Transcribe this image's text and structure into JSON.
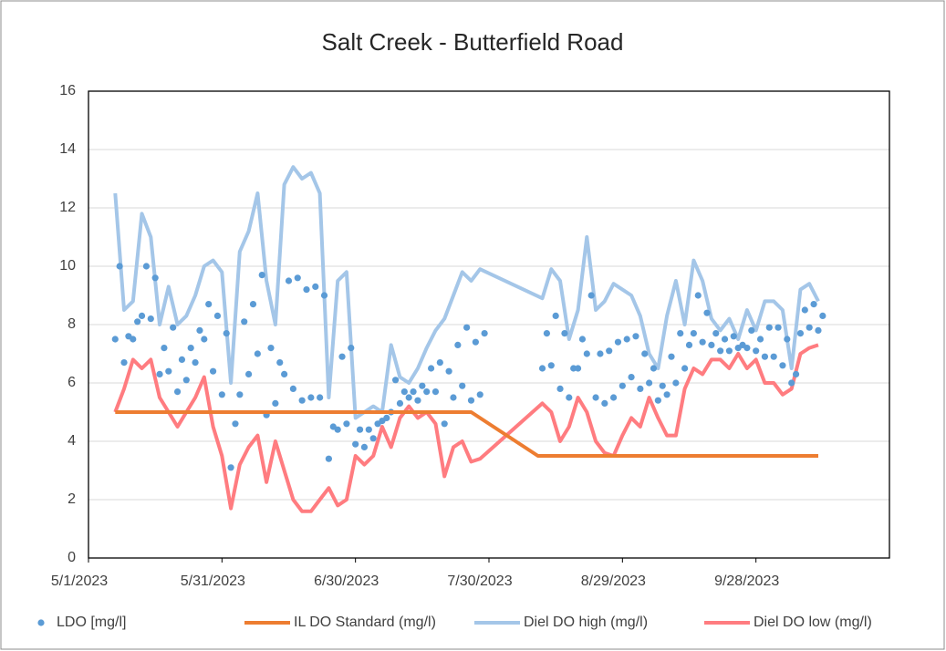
{
  "chart_data": {
    "type": "line",
    "title": "Salt Creek - Butterfield Road",
    "xlim": [
      "5/1/2023",
      "10/28/2023"
    ],
    "xticks": [
      "5/1/2023",
      "5/31/2023",
      "6/30/2023",
      "7/30/2023",
      "8/29/2023",
      "9/28/2023"
    ],
    "ylim": [
      0,
      16
    ],
    "yticks": [
      0,
      2,
      4,
      6,
      8,
      10,
      12,
      14,
      16
    ],
    "grid": true,
    "legend": "bottom",
    "x": [
      "5/7/2023",
      "5/9/2023",
      "5/11/2023",
      "5/13/2023",
      "5/15/2023",
      "5/17/2023",
      "5/19/2023",
      "5/21/2023",
      "5/23/2023",
      "5/25/2023",
      "5/27/2023",
      "5/29/2023",
      "5/31/2023",
      "6/2/2023",
      "6/4/2023",
      "6/6/2023",
      "6/8/2023",
      "6/10/2023",
      "6/12/2023",
      "6/14/2023",
      "6/16/2023",
      "6/18/2023",
      "6/20/2023",
      "6/22/2023",
      "6/24/2023",
      "6/26/2023",
      "6/28/2023",
      "6/30/2023",
      "7/2/2023",
      "7/4/2023",
      "7/6/2023",
      "7/8/2023",
      "7/10/2023",
      "7/12/2023",
      "7/14/2023",
      "7/16/2023",
      "7/18/2023",
      "7/20/2023",
      "7/22/2023",
      "7/24/2023",
      "7/26/2023",
      "7/28/2023",
      "8/11/2023",
      "8/13/2023",
      "8/15/2023",
      "8/17/2023",
      "8/19/2023",
      "8/21/2023",
      "8/23/2023",
      "8/25/2023",
      "8/27/2023",
      "8/29/2023",
      "8/31/2023",
      "9/2/2023",
      "9/4/2023",
      "9/6/2023",
      "9/8/2023",
      "9/10/2023",
      "9/12/2023",
      "9/14/2023",
      "9/16/2023",
      "9/18/2023",
      "9/20/2023",
      "9/22/2023",
      "9/24/2023",
      "9/26/2023",
      "9/28/2023",
      "9/30/2023",
      "10/2/2023",
      "10/4/2023",
      "10/6/2023",
      "10/8/2023",
      "10/10/2023",
      "10/12/2023"
    ],
    "series": [
      {
        "name": "LDO [mg/l]",
        "type": "scatter",
        "color": "#5b9bd5",
        "x": [
          "5/7/2023",
          "5/8/2023",
          "5/9/2023",
          "5/10/2023",
          "5/11/2023",
          "5/12/2023",
          "5/13/2023",
          "5/14/2023",
          "5/15/2023",
          "5/16/2023",
          "5/17/2023",
          "5/18/2023",
          "5/19/2023",
          "5/20/2023",
          "5/21/2023",
          "5/22/2023",
          "5/23/2023",
          "5/24/2023",
          "5/25/2023",
          "5/26/2023",
          "5/27/2023",
          "5/28/2023",
          "5/29/2023",
          "5/30/2023",
          "5/31/2023",
          "6/1/2023",
          "6/2/2023",
          "6/3/2023",
          "6/4/2023",
          "6/5/2023",
          "6/6/2023",
          "6/7/2023",
          "6/8/2023",
          "6/9/2023",
          "6/10/2023",
          "6/11/2023",
          "6/12/2023",
          "6/13/2023",
          "6/14/2023",
          "6/15/2023",
          "6/16/2023",
          "6/17/2023",
          "6/18/2023",
          "6/19/2023",
          "6/20/2023",
          "6/21/2023",
          "6/22/2023",
          "6/23/2023",
          "6/24/2023",
          "6/25/2023",
          "6/26/2023",
          "6/27/2023",
          "6/28/2023",
          "6/29/2023",
          "6/30/2023",
          "7/1/2023",
          "7/2/2023",
          "7/3/2023",
          "7/4/2023",
          "7/5/2023",
          "7/6/2023",
          "7/7/2023",
          "7/8/2023",
          "7/9/2023",
          "7/10/2023",
          "7/11/2023",
          "7/12/2023",
          "7/13/2023",
          "7/14/2023",
          "7/15/2023",
          "7/16/2023",
          "7/17/2023",
          "7/18/2023",
          "7/19/2023",
          "7/20/2023",
          "7/21/2023",
          "7/22/2023",
          "7/23/2023",
          "7/24/2023",
          "7/25/2023",
          "7/26/2023",
          "7/27/2023",
          "7/28/2023",
          "7/29/2023",
          "8/11/2023",
          "8/12/2023",
          "8/13/2023",
          "8/14/2023",
          "8/15/2023",
          "8/16/2023",
          "8/17/2023",
          "8/18/2023",
          "8/19/2023",
          "8/20/2023",
          "8/21/2023",
          "8/22/2023",
          "8/23/2023",
          "8/24/2023",
          "8/25/2023",
          "8/26/2023",
          "8/27/2023",
          "8/28/2023",
          "8/29/2023",
          "8/30/2023",
          "8/31/2023",
          "9/1/2023",
          "9/2/2023",
          "9/3/2023",
          "9/4/2023",
          "9/5/2023",
          "9/6/2023",
          "9/7/2023",
          "9/8/2023",
          "9/9/2023",
          "9/10/2023",
          "9/11/2023",
          "9/12/2023",
          "9/13/2023",
          "9/14/2023",
          "9/15/2023",
          "9/16/2023",
          "9/17/2023",
          "9/18/2023",
          "9/19/2023",
          "9/20/2023",
          "9/21/2023",
          "9/22/2023",
          "9/23/2023",
          "9/24/2023",
          "9/25/2023",
          "9/26/2023",
          "9/27/2023",
          "9/28/2023",
          "9/29/2023",
          "9/30/2023",
          "10/1/2023",
          "10/2/2023",
          "10/3/2023",
          "10/4/2023",
          "10/5/2023",
          "10/6/2023",
          "10/7/2023",
          "10/8/2023",
          "10/9/2023",
          "10/10/2023",
          "10/11/2023",
          "10/12/2023",
          "10/13/2023"
        ],
        "values": [
          7.5,
          10.0,
          6.7,
          7.6,
          7.5,
          8.1,
          8.3,
          10.0,
          8.2,
          9.6,
          6.3,
          7.2,
          6.4,
          7.9,
          5.7,
          6.8,
          6.1,
          7.2,
          6.7,
          7.8,
          7.5,
          8.7,
          6.4,
          8.3,
          5.6,
          7.7,
          3.1,
          4.6,
          5.6,
          8.1,
          6.3,
          8.7,
          7.0,
          9.7,
          4.9,
          7.2,
          5.3,
          6.7,
          6.3,
          9.5,
          5.8,
          9.6,
          5.4,
          9.2,
          5.5,
          9.3,
          5.5,
          9.0,
          3.4,
          4.5,
          4.4,
          6.9,
          4.6,
          7.2,
          3.9,
          4.4,
          3.8,
          4.4,
          4.1,
          4.6,
          4.7,
          4.8,
          5.0,
          6.1,
          5.3,
          5.7,
          5.5,
          5.7,
          5.4,
          5.9,
          5.7,
          6.5,
          5.7,
          6.7,
          4.6,
          6.4,
          5.5,
          7.3,
          5.9,
          7.9,
          5.4,
          7.4,
          5.6,
          7.7,
          6.5,
          7.7,
          6.6,
          8.3,
          5.8,
          7.7,
          5.5,
          6.5,
          6.5,
          7.5,
          7.0,
          9.0,
          5.5,
          7.0,
          5.3,
          7.1,
          5.5,
          7.4,
          5.9,
          7.5,
          6.2,
          7.6,
          5.8,
          7.0,
          6.0,
          6.5,
          5.4,
          5.9,
          5.6,
          6.9,
          6.0,
          7.7,
          6.5,
          7.3,
          7.7,
          9.0,
          7.4,
          8.4,
          7.3,
          7.7,
          7.1,
          7.5,
          7.1,
          7.6,
          7.2,
          7.3,
          7.2,
          7.8,
          7.1,
          7.5,
          6.9,
          7.9,
          6.9,
          7.9,
          6.6,
          7.5,
          6.0,
          6.3,
          7.7,
          8.5,
          7.9,
          8.7,
          7.8,
          8.3
        ]
      },
      {
        "name": "IL DO Standard (mg/l)",
        "type": "line",
        "color": "#ed7d31",
        "x": [
          "5/7/2023",
          "7/26/2023",
          "8/10/2023",
          "10/12/2023"
        ],
        "values": [
          5,
          5,
          3.5,
          3.5
        ]
      },
      {
        "name": "Diel DO high (mg/l)",
        "type": "line",
        "color": "#a4c6e8",
        "values": [
          12.5,
          8.5,
          8.8,
          11.8,
          11.0,
          8.0,
          9.3,
          8.0,
          8.3,
          9.0,
          10.0,
          10.2,
          9.8,
          6.0,
          10.5,
          11.2,
          12.5,
          9.5,
          8.0,
          12.8,
          13.4,
          13.0,
          13.2,
          12.5,
          5.5,
          9.5,
          9.8,
          4.8,
          5.0,
          5.2,
          5.0,
          7.3,
          6.2,
          6.0,
          6.5,
          7.2,
          7.8,
          8.2,
          9.0,
          9.8,
          9.5,
          9.9,
          8.9,
          9.9,
          9.5,
          7.5,
          8.5,
          11.0,
          8.5,
          8.8,
          9.4,
          9.2,
          9.0,
          8.3,
          7.0,
          6.5,
          8.3,
          9.5,
          8.0,
          10.2,
          9.5,
          8.2,
          7.8,
          8.2,
          7.5,
          8.5,
          7.8,
          8.8,
          8.8,
          8.5,
          6.5,
          9.2,
          9.4,
          8.8
        ]
      },
      {
        "name": "Diel DO low (mg/l)",
        "type": "line",
        "color": "#ff7c80",
        "values": [
          5.0,
          5.8,
          6.8,
          6.5,
          6.8,
          5.5,
          5.0,
          4.5,
          5.0,
          5.5,
          6.2,
          4.5,
          3.5,
          1.7,
          3.2,
          3.8,
          4.2,
          2.6,
          4.0,
          3.0,
          2.0,
          1.6,
          1.6,
          2.0,
          2.4,
          1.8,
          2.0,
          3.5,
          3.2,
          3.5,
          4.5,
          3.8,
          4.8,
          5.2,
          4.8,
          5.0,
          4.6,
          2.8,
          3.8,
          4.0,
          3.3,
          3.4,
          5.3,
          5.0,
          4.0,
          4.5,
          5.5,
          5.0,
          4.0,
          3.6,
          3.5,
          4.2,
          4.8,
          4.5,
          5.5,
          4.8,
          4.2,
          4.2,
          5.8,
          6.5,
          6.3,
          6.8,
          6.8,
          6.5,
          7.0,
          6.5,
          6.8,
          6.0,
          6.0,
          5.6,
          5.8,
          7.0,
          7.2,
          7.3
        ]
      }
    ]
  }
}
